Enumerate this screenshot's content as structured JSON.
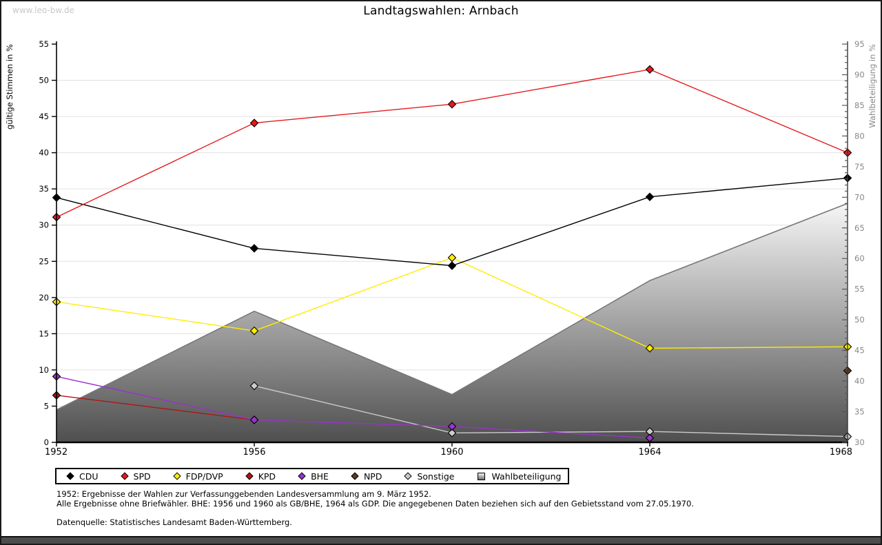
{
  "page": {
    "watermark": "www.leo-bw.de",
    "title": "Landtagswahlen: Arnbach"
  },
  "chart_data": {
    "type": "line",
    "title": "Landtagswahlen: Arnbach",
    "x": [
      1952,
      1956,
      1960,
      1964,
      1968
    ],
    "left_axis": {
      "label": "gültige Stimmen in %",
      "min": 0,
      "max": 55,
      "step": 5
    },
    "right_axis": {
      "label": "Wahlbeteiligung in %",
      "min": 30,
      "max": 95,
      "step": 5,
      "minor_step": 1
    },
    "grid": true,
    "legend_position": "bottom",
    "series": [
      {
        "key": "cdu",
        "name": "CDU",
        "color": "#000000",
        "axis": "left",
        "values": [
          33.8,
          26.8,
          24.4,
          33.9,
          36.5
        ]
      },
      {
        "key": "spd",
        "name": "SPD",
        "color": "#e41a1c",
        "axis": "left",
        "values": [
          31.1,
          44.1,
          46.7,
          51.5,
          40.0
        ]
      },
      {
        "key": "fdp-dvp",
        "name": "FDP/DVP",
        "color": "#ffed00",
        "axis": "left",
        "values": [
          19.4,
          15.4,
          25.5,
          13.0,
          13.2
        ]
      },
      {
        "key": "kpd",
        "name": "KPD",
        "color": "#b01513",
        "axis": "left",
        "values": [
          6.5,
          3.1,
          null,
          null,
          null
        ]
      },
      {
        "key": "bhe",
        "name": "BHE",
        "color": "#9933cc",
        "axis": "left",
        "values": [
          9.1,
          3.1,
          2.2,
          0.6,
          null
        ]
      },
      {
        "key": "npd",
        "name": "NPD",
        "color": "#5e3a1c",
        "axis": "left",
        "values": [
          null,
          null,
          null,
          null,
          9.9
        ]
      },
      {
        "key": "sonstige",
        "name": "Sonstige",
        "color": "#cccccc",
        "axis": "left",
        "values": [
          null,
          7.8,
          1.3,
          1.5,
          0.8
        ]
      }
    ],
    "area_series": {
      "key": "wahlbeteiligung",
      "name": "Wahlbeteiligung",
      "axis": "right",
      "values": [
        35.3,
        51.4,
        37.8,
        56.4,
        69.0
      ],
      "boundary_color": "#777777",
      "fill_top_color": "#f6f6f6",
      "fill_bottom_color": "#4f4f4f"
    }
  },
  "colors": {
    "gridline": "#e0e0e0",
    "axis": "#000000",
    "right_axis_text": "#888888",
    "watermark": "#c9c9c9"
  },
  "footnotes": {
    "line1": "1952: Ergebnisse der Wahlen zur Verfassunggebenden Landesversammlung am 9. März 1952.",
    "line2": "Alle Ergebnisse ohne Briefwähler. BHE: 1956 und 1960 als GB/BHE, 1964 als GDP. Die angegebenen Daten beziehen sich auf den Gebietsstand vom 27.05.1970.",
    "source": "Datenquelle: Statistisches Landesamt Baden-Württemberg."
  }
}
